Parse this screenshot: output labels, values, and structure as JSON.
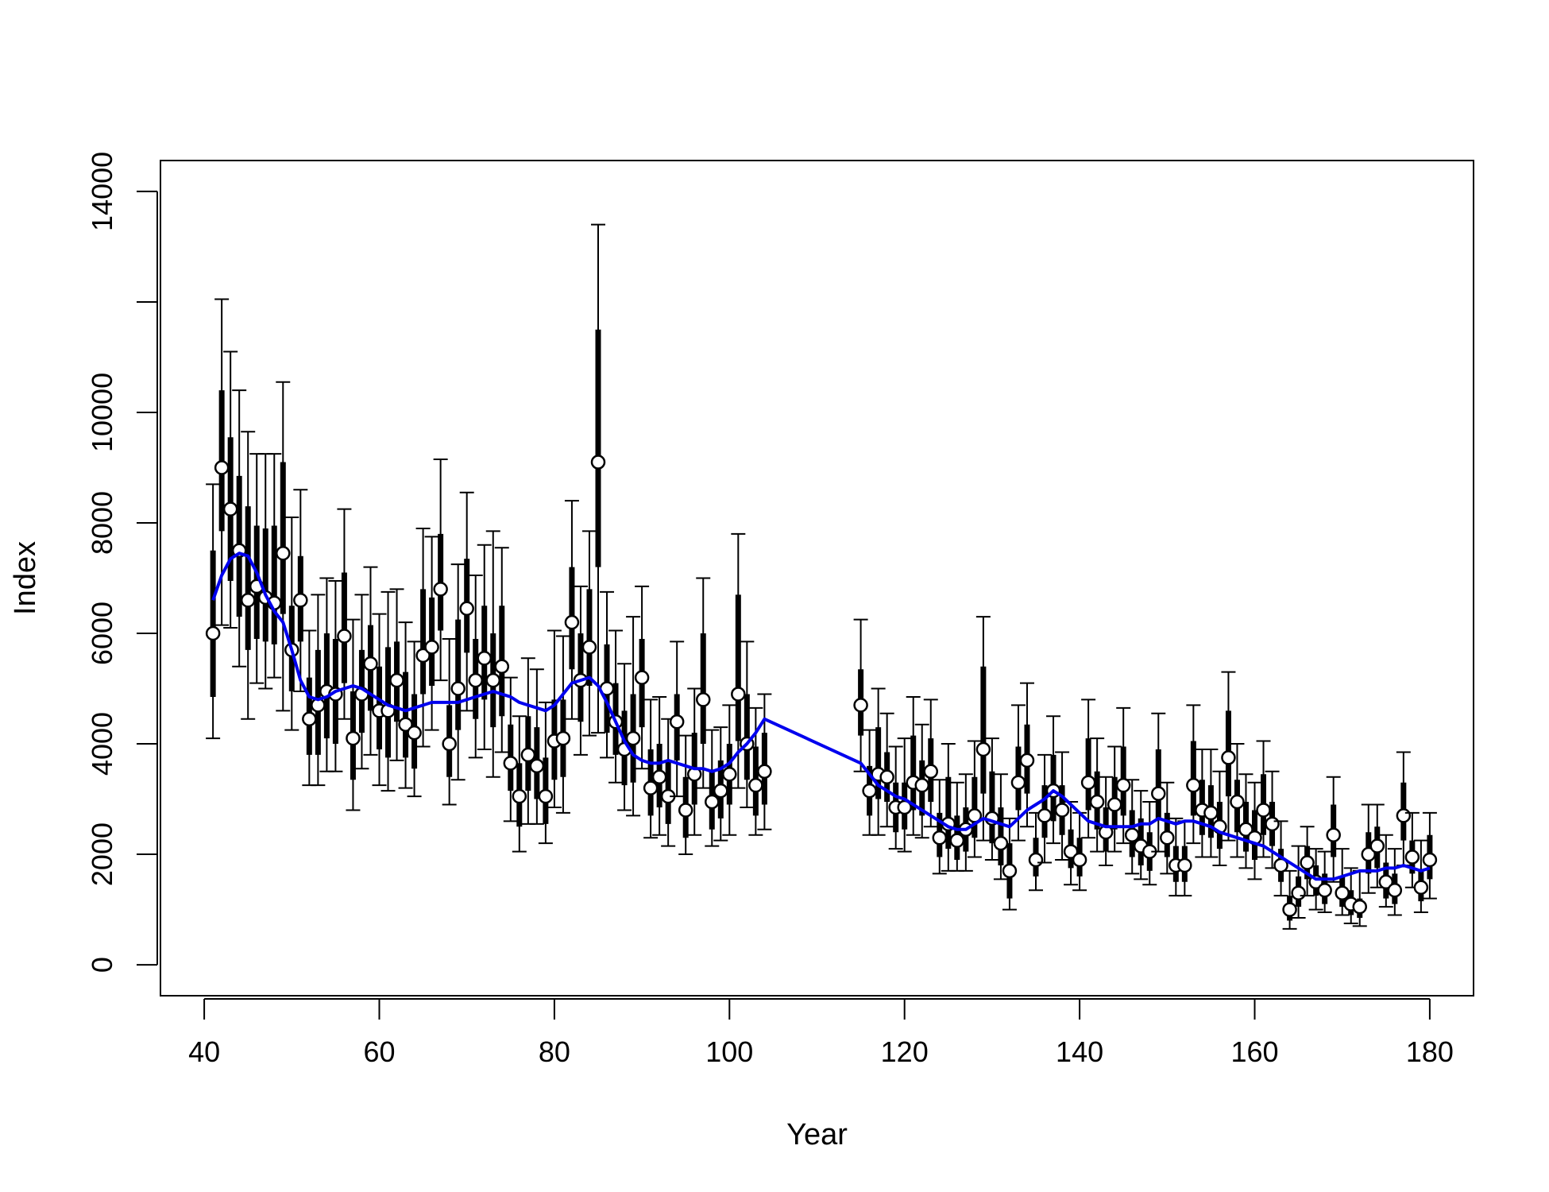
{
  "chart_data": {
    "type": "scatter",
    "title": "",
    "xlabel": "Year",
    "ylabel": "Index",
    "xlim": [
      35,
      185
    ],
    "ylim": [
      0,
      14000
    ],
    "x_ticks": [
      40,
      60,
      80,
      100,
      120,
      140,
      160,
      180
    ],
    "y_ticks": [
      0,
      2000,
      4000,
      6000,
      8000,
      10000,
      12000,
      14000
    ],
    "y_tick_labels": [
      "0",
      "2000",
      "4000",
      "6000",
      "8000",
      "10000",
      "",
      "14000"
    ],
    "grid": false,
    "legend": "none",
    "colors": {
      "points": "#000000",
      "point_fill": "#ffffff",
      "trend": "#0000ee"
    },
    "series": [
      {
        "x": [
          41,
          42,
          43,
          44,
          45,
          46,
          47,
          48,
          49,
          50,
          51,
          52,
          53,
          54,
          55,
          56,
          57,
          58,
          59,
          60,
          61,
          62,
          63,
          64,
          65,
          66,
          67,
          68,
          69,
          70,
          71,
          72,
          73,
          74,
          75,
          76,
          77,
          78,
          79,
          80,
          81,
          82,
          83,
          84,
          85,
          86,
          87,
          88,
          89,
          90,
          91,
          92,
          93,
          94,
          95,
          96,
          97,
          98,
          99,
          100,
          101,
          102,
          103,
          104,
          115,
          116,
          117,
          118,
          119,
          120,
          121,
          122,
          123,
          124,
          125,
          126,
          127,
          128,
          129,
          130,
          131,
          132,
          133,
          134,
          135,
          136,
          137,
          138,
          139,
          140,
          141,
          142,
          143,
          144,
          145,
          146,
          147,
          148,
          149,
          150,
          151,
          152,
          153,
          154,
          155,
          156,
          157,
          158,
          159,
          160,
          161,
          162,
          163,
          164,
          165,
          166,
          167,
          168,
          169,
          170,
          171,
          172,
          173,
          174,
          175,
          176,
          177,
          178,
          179,
          180
        ],
        "y": [
          6000,
          9000,
          8250,
          7500,
          6600,
          6850,
          6650,
          6550,
          7450,
          5700,
          6600,
          4450,
          4700,
          4950,
          4900,
          5950,
          4100,
          4900,
          5450,
          4600,
          4600,
          5150,
          4350,
          4200,
          5600,
          5750,
          6800,
          4000,
          5000,
          6450,
          5150,
          5550,
          5150,
          5400,
          3650,
          3050,
          3800,
          3600,
          3050,
          4050,
          4100,
          6200,
          5150,
          5750,
          9100,
          5000,
          4400,
          3900,
          4100,
          5200,
          3200,
          3400,
          3050,
          4400,
          2800,
          3450,
          4800,
          2950,
          3150,
          3450,
          4900,
          4000,
          3250,
          3500,
          4700,
          3150,
          3450,
          3400,
          2850,
          2850,
          3300,
          3250,
          3500,
          2300,
          2550,
          2250,
          2450,
          2700,
          3900,
          2650,
          2200,
          1700,
          3300,
          3700,
          1900,
          2700,
          3150,
          2800,
          2050,
          1900,
          3300,
          2950,
          2400,
          2900,
          3250,
          2350,
          2150,
          2050,
          3100,
          2300,
          1800,
          1800,
          3250,
          2800,
          2750,
          2500,
          3750,
          2950,
          2450,
          2300,
          2800,
          2550,
          1800,
          1000,
          1300,
          1850,
          1500,
          1350,
          2350,
          1300,
          1100,
          1050,
          2000,
          2150,
          1500,
          1350,
          2700,
          1950,
          1400,
          1900
        ],
        "q25": [
          4850,
          7850,
          6950,
          6300,
          5700,
          5900,
          5850,
          5800,
          6350,
          4950,
          5850,
          3800,
          3800,
          4100,
          4000,
          5100,
          3350,
          4200,
          4600,
          3900,
          3750,
          4400,
          3750,
          3550,
          4900,
          5050,
          6050,
          3400,
          4250,
          5650,
          4450,
          4800,
          4300,
          4500,
          3150,
          2500,
          3150,
          3000,
          2550,
          3350,
          3400,
          5350,
          4400,
          5050,
          7200,
          4200,
          3800,
          3250,
          3300,
          4300,
          2700,
          2850,
          2550,
          3700,
          2300,
          2900,
          4000,
          2450,
          2650,
          2900,
          4050,
          3350,
          2700,
          2900,
          4150,
          2700,
          3000,
          2950,
          2400,
          2450,
          2800,
          2700,
          2950,
          1950,
          2100,
          1900,
          2050,
          2300,
          3100,
          2200,
          1800,
          1200,
          2800,
          3100,
          1600,
          2300,
          2600,
          2350,
          1750,
          1600,
          2800,
          2450,
          2050,
          2450,
          2700,
          1950,
          1800,
          1700,
          2650,
          1950,
          1500,
          1500,
          2700,
          2350,
          2300,
          2100,
          3050,
          2400,
          2050,
          1900,
          2350,
          2150,
          1500,
          800,
          1050,
          1550,
          1250,
          1100,
          1950,
          1050,
          900,
          850,
          1650,
          1750,
          1200,
          1100,
          2250,
          1650,
          1150,
          1550
        ],
        "q75": [
          7500,
          10400,
          9550,
          8850,
          8300,
          7950,
          7900,
          7950,
          9100,
          6500,
          7400,
          5200,
          5700,
          6000,
          5900,
          7100,
          4950,
          5700,
          6150,
          5400,
          5750,
          5850,
          5300,
          4900,
          6800,
          6650,
          7800,
          4700,
          6250,
          7350,
          5900,
          6500,
          6000,
          6500,
          4350,
          3650,
          4500,
          4300,
          3750,
          4800,
          4800,
          7200,
          6000,
          6800,
          11500,
          5800,
          5100,
          4600,
          4900,
          5900,
          3900,
          4000,
          3700,
          4900,
          3400,
          4200,
          6000,
          3500,
          3700,
          4000,
          6700,
          4900,
          3950,
          4200,
          5350,
          3600,
          4300,
          3850,
          3300,
          3300,
          4150,
          3700,
          4100,
          2750,
          3400,
          2700,
          2850,
          3400,
          5400,
          3500,
          2850,
          2200,
          3950,
          4350,
          2300,
          3250,
          3800,
          3250,
          2450,
          2300,
          4100,
          3500,
          2850,
          3400,
          3950,
          2800,
          2650,
          2400,
          3900,
          2750,
          2150,
          2150,
          4050,
          3350,
          3250,
          2950,
          4600,
          3350,
          2950,
          2800,
          3450,
          2950,
          2100,
          1250,
          1600,
          2150,
          1800,
          1650,
          2900,
          1600,
          1350,
          1200,
          2400,
          2500,
          1850,
          1650,
          3300,
          2250,
          1700,
          2350
        ],
        "low": [
          4100,
          6150,
          6100,
          5400,
          4450,
          5100,
          5000,
          5200,
          4600,
          4250,
          4950,
          3250,
          3250,
          3500,
          3500,
          4450,
          2800,
          3550,
          3800,
          3250,
          3150,
          3700,
          3200,
          3050,
          3950,
          4250,
          5150,
          2900,
          3350,
          4600,
          3750,
          3900,
          3400,
          3850,
          2600,
          2050,
          2550,
          2550,
          2200,
          2850,
          2750,
          4450,
          3800,
          4150,
          4200,
          3750,
          3300,
          2800,
          2700,
          3550,
          2300,
          2350,
          2150,
          3050,
          2000,
          2350,
          3200,
          2150,
          2250,
          2350,
          3200,
          2850,
          2350,
          2450,
          3500,
          2350,
          2350,
          2500,
          2100,
          2050,
          2350,
          2300,
          2500,
          1650,
          1700,
          1700,
          1700,
          1950,
          2250,
          1900,
          1550,
          1000,
          2250,
          2500,
          1350,
          1850,
          2200,
          1900,
          1450,
          1350,
          2300,
          2050,
          1800,
          2050,
          2200,
          1650,
          1550,
          1450,
          2050,
          1650,
          1250,
          1250,
          2200,
          1950,
          1950,
          1800,
          2250,
          1950,
          1750,
          1550,
          1950,
          1750,
          1250,
          650,
          850,
          1250,
          1000,
          950,
          1500,
          900,
          750,
          700,
          1300,
          1400,
          1050,
          900,
          1800,
          1400,
          950,
          1200
        ],
        "high": [
          8700,
          12050,
          11100,
          10400,
          9650,
          9250,
          9250,
          9250,
          10550,
          8100,
          8600,
          6050,
          6700,
          7000,
          6950,
          8250,
          6250,
          6700,
          7200,
          6350,
          6750,
          6800,
          6200,
          5850,
          7900,
          7750,
          9150,
          5900,
          7250,
          8550,
          7050,
          7600,
          7850,
          7550,
          5200,
          4500,
          5550,
          5350,
          4750,
          6050,
          5950,
          8400,
          6850,
          7850,
          13400,
          6750,
          6050,
          5450,
          6300,
          6850,
          4800,
          4850,
          4450,
          5850,
          4150,
          5000,
          7000,
          4250,
          4300,
          4700,
          7800,
          5850,
          4650,
          4900,
          6250,
          4250,
          5000,
          4550,
          3950,
          4100,
          4850,
          4350,
          4800,
          3350,
          4000,
          3300,
          3450,
          4050,
          6300,
          4100,
          3450,
          2650,
          4700,
          5100,
          2750,
          3800,
          4500,
          3850,
          2950,
          2750,
          4800,
          4100,
          3400,
          3950,
          4650,
          3350,
          3150,
          2950,
          4550,
          3300,
          2650,
          2600,
          4700,
          3900,
          3900,
          3500,
          5300,
          4000,
          3450,
          3300,
          4050,
          3500,
          2600,
          1700,
          2150,
          2500,
          2100,
          2050,
          3400,
          2100,
          1750,
          1700,
          2900,
          2900,
          2350,
          2100,
          3850,
          2750,
          2250,
          2750
        ]
      },
      {
        "type": "line",
        "x": [
          41,
          42,
          43,
          44,
          45,
          46,
          47,
          48,
          49,
          50,
          51,
          52,
          53,
          54,
          55,
          56,
          57,
          58,
          59,
          60,
          61,
          62,
          63,
          64,
          65,
          66,
          67,
          68,
          69,
          70,
          71,
          72,
          73,
          74,
          75,
          76,
          77,
          78,
          79,
          80,
          81,
          82,
          83,
          84,
          85,
          86,
          87,
          88,
          89,
          90,
          91,
          92,
          93,
          94,
          95,
          96,
          97,
          98,
          99,
          100,
          101,
          102,
          103,
          104,
          115,
          116,
          117,
          118,
          119,
          120,
          121,
          122,
          123,
          124,
          125,
          126,
          127,
          128,
          129,
          130,
          131,
          132,
          133,
          134,
          135,
          136,
          137,
          138,
          139,
          140,
          141,
          142,
          143,
          144,
          145,
          146,
          147,
          148,
          149,
          150,
          151,
          152,
          153,
          154,
          155,
          156,
          157,
          158,
          159,
          160,
          161,
          162,
          163,
          164,
          165,
          166,
          167,
          168,
          169,
          170,
          171,
          172,
          173,
          174,
          175,
          176,
          177,
          178,
          179,
          180
        ],
        "y": [
          6600,
          7050,
          7350,
          7450,
          7400,
          7100,
          6700,
          6400,
          6200,
          5700,
          5150,
          4850,
          4800,
          4850,
          4950,
          5000,
          5050,
          5000,
          4900,
          4800,
          4700,
          4650,
          4600,
          4650,
          4700,
          4750,
          4750,
          4750,
          4750,
          4800,
          4850,
          4900,
          4950,
          4900,
          4850,
          4750,
          4700,
          4650,
          4600,
          4700,
          4900,
          5100,
          5150,
          5200,
          5050,
          4750,
          4400,
          4050,
          3800,
          3700,
          3650,
          3650,
          3700,
          3650,
          3600,
          3550,
          3550,
          3500,
          3550,
          3650,
          3850,
          4000,
          4200,
          4450,
          3650,
          3450,
          3250,
          3150,
          3050,
          3000,
          2900,
          2800,
          2700,
          2600,
          2500,
          2450,
          2450,
          2550,
          2650,
          2600,
          2550,
          2500,
          2650,
          2800,
          2900,
          3000,
          3150,
          3050,
          2900,
          2750,
          2600,
          2550,
          2500,
          2500,
          2500,
          2500,
          2550,
          2550,
          2650,
          2600,
          2550,
          2600,
          2600,
          2550,
          2500,
          2400,
          2350,
          2300,
          2250,
          2200,
          2150,
          2050,
          1950,
          1850,
          1750,
          1650,
          1550,
          1550,
          1550,
          1600,
          1650,
          1700,
          1700,
          1700,
          1750,
          1750,
          1800,
          1750,
          1700,
          1750
        ]
      }
    ]
  }
}
